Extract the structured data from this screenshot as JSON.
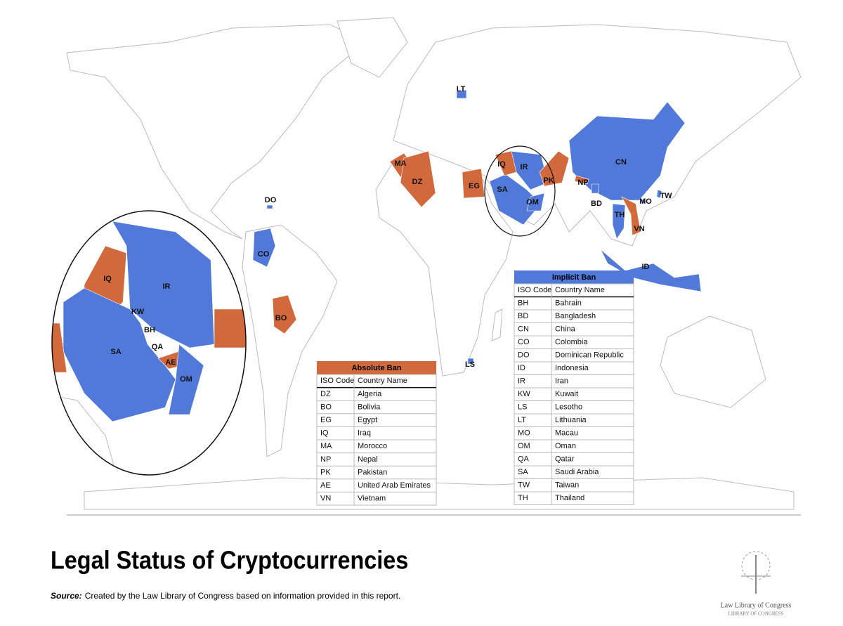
{
  "map": {
    "labels": [
      "LT",
      "MA",
      "DZ",
      "EG",
      "IQ",
      "IR",
      "SA",
      "OM",
      "PK",
      "NP",
      "CN",
      "BD",
      "TH",
      "MO",
      "TW",
      "VN",
      "ID",
      "DO",
      "CO",
      "BO",
      "LS"
    ],
    "inset_labels": [
      "IQ",
      "IR",
      "KW",
      "BH",
      "SA",
      "QA",
      "AE",
      "OM"
    ]
  },
  "absolute_ban": {
    "title": "Absolute Ban",
    "header": [
      "ISO Code",
      "Country Name"
    ],
    "rows": [
      [
        "DZ",
        "Algeria"
      ],
      [
        "BO",
        "Bolivia"
      ],
      [
        "EG",
        "Egypt"
      ],
      [
        "IQ",
        "Iraq"
      ],
      [
        "MA",
        "Morocco"
      ],
      [
        "NP",
        "Nepal"
      ],
      [
        "PK",
        "Pakistan"
      ],
      [
        "AE",
        "United Arab Emirates"
      ],
      [
        "VN",
        "Vietnam"
      ]
    ]
  },
  "implicit_ban": {
    "title": "Implicit Ban",
    "header": [
      "ISO Code",
      "Country Name"
    ],
    "rows": [
      [
        "BH",
        "Bahrain"
      ],
      [
        "BD",
        "Bangladesh"
      ],
      [
        "CN",
        "China"
      ],
      [
        "CO",
        "Colombia"
      ],
      [
        "DO",
        "Dominican Republic"
      ],
      [
        "ID",
        "Indonesia"
      ],
      [
        "IR",
        "Iran"
      ],
      [
        "KW",
        "Kuwait"
      ],
      [
        "LS",
        "Lesotho"
      ],
      [
        "LT",
        "Lithuania"
      ],
      [
        "MO",
        "Macau"
      ],
      [
        "OM",
        "Oman"
      ],
      [
        "QA",
        "Qatar"
      ],
      [
        "SA",
        "Saudi Arabia"
      ],
      [
        "TW",
        "Taiwan"
      ],
      [
        "TH",
        "Thailand"
      ]
    ]
  },
  "title": "Legal Status of Cryptocurrencies",
  "source": {
    "label": "Source:",
    "text": "Created by the Law Library of Congress based on information provided in this report."
  },
  "logo": {
    "name": "Law Library of Congress",
    "sub": "LIBRARY OF CONGRESS"
  }
}
